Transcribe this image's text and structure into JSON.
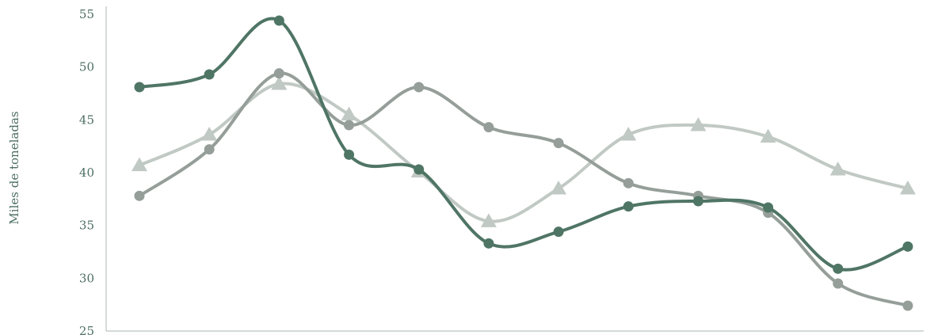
{
  "chart_data": {
    "type": "line",
    "title": "",
    "xlabel": "",
    "ylabel": "Miles de toneladas",
    "ylim": [
      25,
      55
    ],
    "yticks": [
      25,
      30,
      35,
      40,
      45,
      50,
      55
    ],
    "x": [
      1,
      2,
      3,
      4,
      5,
      6,
      7,
      8,
      9,
      10,
      11,
      12
    ],
    "grid": false,
    "legend": "none",
    "series": [
      {
        "color": "#4f7565",
        "marker": "circle",
        "values": [
          48.1,
          49.3,
          54.4,
          41.7,
          40.3,
          33.3,
          34.4,
          36.8,
          37.3,
          36.7,
          30.9,
          33.0
        ]
      },
      {
        "color": "#959e99",
        "marker": "circle",
        "values": [
          37.8,
          42.2,
          49.4,
          44.5,
          48.1,
          44.3,
          42.8,
          39.0,
          37.8,
          36.2,
          29.5,
          27.4
        ]
      },
      {
        "color": "#c1c9c4",
        "marker": "triangle",
        "values": [
          40.7,
          43.6,
          48.4,
          45.5,
          40.1,
          35.4,
          38.5,
          43.6,
          44.5,
          43.4,
          40.3,
          38.5
        ]
      }
    ]
  }
}
